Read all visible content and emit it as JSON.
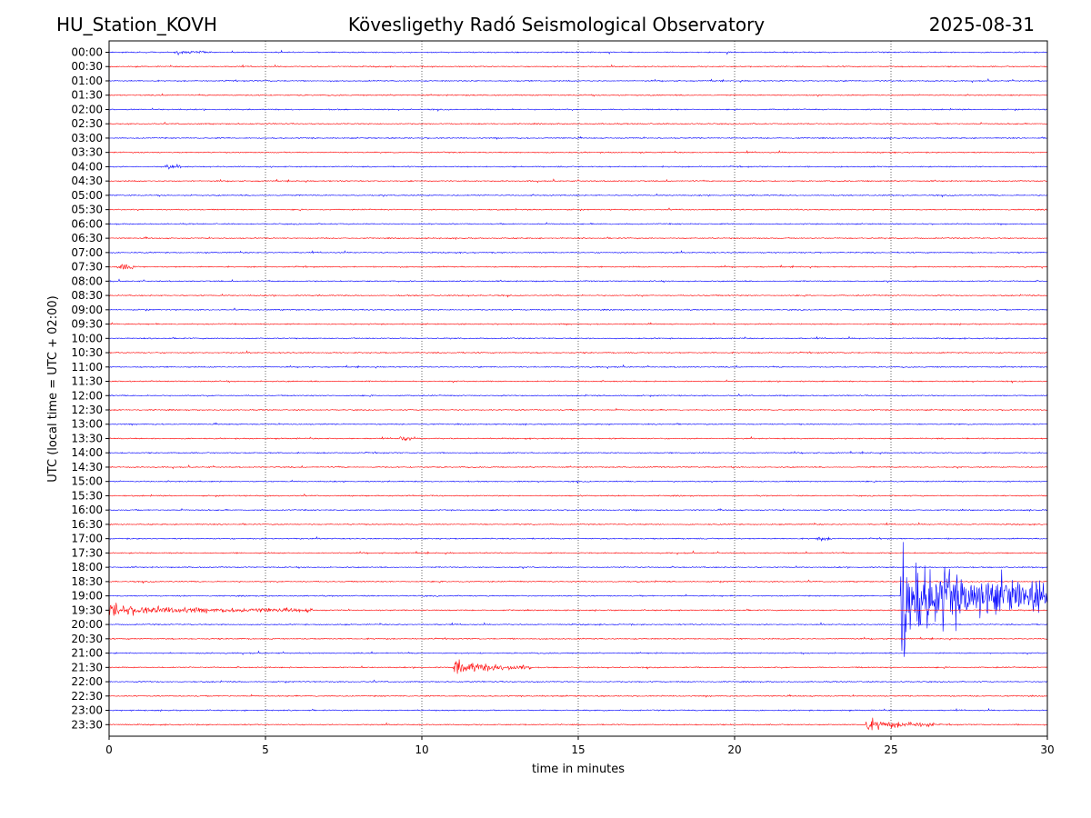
{
  "header": {
    "left": "HU_Station_KOVH",
    "center": "Kövesligethy Radó Seismological Observatory",
    "right": "2025-08-31"
  },
  "chart_data": {
    "type": "line",
    "title": "Kövesligethy Radó Seismological Observatory",
    "xlabel": "time in minutes",
    "ylabel": "UTC (local time = UTC + 02:00)",
    "xlim": [
      0,
      30
    ],
    "xticks": [
      "0",
      "5",
      "10",
      "15",
      "20",
      "25",
      "30"
    ],
    "grid": "vertical dotted at each 5 minutes",
    "row_labels": [
      "00:00",
      "00:30",
      "01:00",
      "01:30",
      "02:00",
      "02:30",
      "03:00",
      "03:30",
      "04:00",
      "04:30",
      "05:00",
      "05:30",
      "06:00",
      "06:30",
      "07:00",
      "07:30",
      "08:00",
      "08:30",
      "09:00",
      "09:30",
      "10:00",
      "10:30",
      "11:00",
      "11:30",
      "12:00",
      "12:30",
      "13:00",
      "13:30",
      "14:00",
      "14:30",
      "15:00",
      "15:30",
      "16:00",
      "16:30",
      "17:00",
      "17:30",
      "18:00",
      "18:30",
      "19:00",
      "19:30",
      "20:00",
      "20:30",
      "21:00",
      "21:30",
      "22:00",
      "22:30",
      "23:00",
      "23:30"
    ],
    "colors": [
      "#0000ff",
      "#ff0000"
    ],
    "events": [
      {
        "row": "00:00",
        "start_min": 2.1,
        "duration_min": 1.0,
        "amp": 0.28
      },
      {
        "row": "04:00",
        "start_min": 1.8,
        "duration_min": 0.5,
        "amp": 0.35
      },
      {
        "row": "07:30",
        "start_min": 0.25,
        "duration_min": 0.6,
        "amp": 0.55
      },
      {
        "row": "13:30",
        "start_min": 9.3,
        "duration_min": 0.4,
        "amp": 0.55
      },
      {
        "row": "17:00",
        "start_min": 22.6,
        "duration_min": 0.5,
        "amp": 0.35
      },
      {
        "row": "19:00",
        "start_min": 25.3,
        "duration_min": 4.7,
        "amp": 6.5
      },
      {
        "row": "19:30",
        "start_min": 0.0,
        "duration_min": 6.5,
        "amp": 0.6
      },
      {
        "row": "21:30",
        "start_min": 11.0,
        "duration_min": 2.5,
        "amp": 0.9
      },
      {
        "row": "23:30",
        "start_min": 24.2,
        "duration_min": 2.2,
        "amp": 0.75
      }
    ]
  }
}
